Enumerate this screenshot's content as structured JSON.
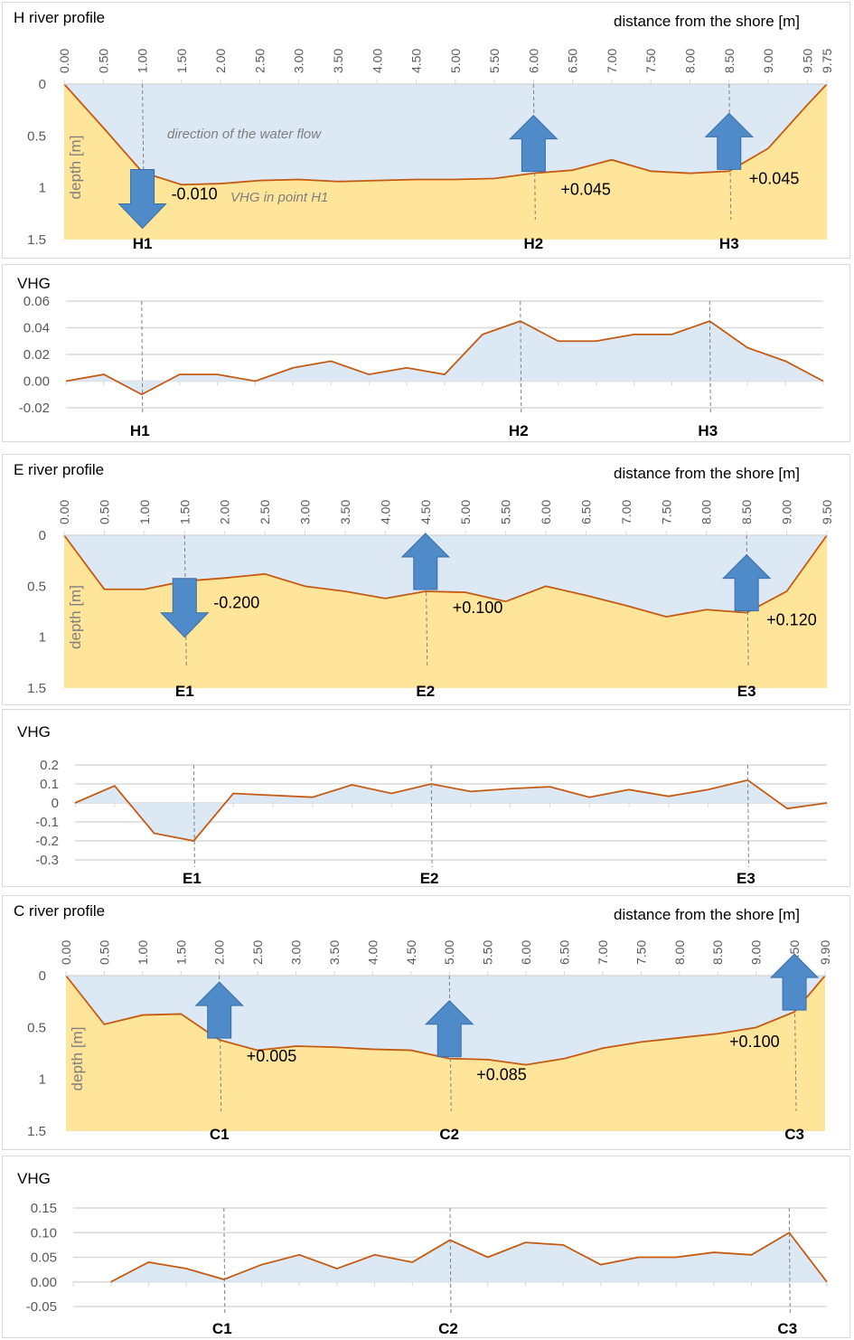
{
  "chart_data": [
    {
      "id": "h-profile",
      "type": "area",
      "title": "H river profile",
      "xlabel": "distance from the shore [m]",
      "ylabel": "depth [m]",
      "x_ticks": [
        "0.00",
        "0.50",
        "1.00",
        "1.50",
        "2.00",
        "2.50",
        "3.00",
        "3.50",
        "4.00",
        "4.50",
        "5.00",
        "5.50",
        "6.00",
        "6.50",
        "7.00",
        "7.50",
        "8.00",
        "8.50",
        "9.00",
        "9.50",
        "9.75"
      ],
      "y_ticks": [
        "0",
        "0.5",
        "1",
        "1.5"
      ],
      "ylim": [
        0,
        1.5
      ],
      "y_inverted": true,
      "x": [
        0,
        0.5,
        1.0,
        1.5,
        2.0,
        2.5,
        3.0,
        3.5,
        4.0,
        4.5,
        5.0,
        5.5,
        6.0,
        6.5,
        7.0,
        7.5,
        8.0,
        8.5,
        9.0,
        9.5,
        9.75
      ],
      "depth": [
        0,
        0.42,
        0.85,
        0.97,
        0.96,
        0.93,
        0.92,
        0.94,
        0.93,
        0.92,
        0.92,
        0.91,
        0.86,
        0.83,
        0.73,
        0.84,
        0.86,
        0.84,
        0.62,
        0.2,
        0
      ],
      "points": [
        {
          "label": "H1",
          "x": 1.0,
          "vhg": "-0.010",
          "direction": "down"
        },
        {
          "label": "H2",
          "x": 6.0,
          "vhg": "+0.045",
          "direction": "up"
        },
        {
          "label": "H3",
          "x": 8.5,
          "vhg": "+0.045",
          "direction": "up"
        }
      ],
      "annotations": [
        "direction of the water flow",
        "VHG  in point H1"
      ]
    },
    {
      "id": "h-vhg",
      "type": "area",
      "title": "VHG",
      "y_ticks": [
        "0.06",
        "0.04",
        "0.02",
        "0.00",
        "-0.02"
      ],
      "ylim": [
        -0.02,
        0.06
      ],
      "x": [
        0,
        0.5,
        1.0,
        1.5,
        2.0,
        2.5,
        3.0,
        3.5,
        4.0,
        4.5,
        5.0,
        5.5,
        6.0,
        6.5,
        7.0,
        7.5,
        8.0,
        8.5,
        9.0,
        9.5,
        10.0
      ],
      "values": [
        0,
        0.005,
        -0.01,
        0.005,
        0.005,
        0,
        0.01,
        0.015,
        0.005,
        0.01,
        0.005,
        0.035,
        0.045,
        0.03,
        0.03,
        0.035,
        0.035,
        0.045,
        0.025,
        0.015,
        0
      ],
      "points": [
        {
          "label": "H1",
          "x": 1.0
        },
        {
          "label": "H2",
          "x": 6.0
        },
        {
          "label": "H3",
          "x": 8.5
        }
      ]
    },
    {
      "id": "e-profile",
      "type": "area",
      "title": "E river profile",
      "xlabel": "distance from the shore [m]",
      "ylabel": "depth [m]",
      "x_ticks": [
        "0.00",
        "0.50",
        "1.00",
        "1.50",
        "2.00",
        "2.50",
        "3.00",
        "3.50",
        "4.00",
        "4.50",
        "5.00",
        "5.50",
        "6.00",
        "6.50",
        "7.00",
        "7.50",
        "8.00",
        "8.50",
        "9.00",
        "9.50"
      ],
      "y_ticks": [
        "0",
        "0.5",
        "1",
        "1.5"
      ],
      "ylim": [
        0,
        1.5
      ],
      "y_inverted": true,
      "x": [
        0,
        0.5,
        1.0,
        1.5,
        2.0,
        2.5,
        3.0,
        3.5,
        4.0,
        4.5,
        5.0,
        5.5,
        6.0,
        6.5,
        7.0,
        7.5,
        8.0,
        8.5,
        9.0,
        9.5
      ],
      "depth": [
        0,
        0.53,
        0.53,
        0.45,
        0.42,
        0.38,
        0.5,
        0.55,
        0.62,
        0.55,
        0.56,
        0.65,
        0.5,
        0.59,
        0.69,
        0.8,
        0.73,
        0.76,
        0.55,
        0
      ],
      "points": [
        {
          "label": "E1",
          "x": 1.5,
          "vhg": "-0.200",
          "direction": "down"
        },
        {
          "label": "E2",
          "x": 4.5,
          "vhg": "+0.100",
          "direction": "up"
        },
        {
          "label": "E3",
          "x": 8.5,
          "vhg": "+0.120",
          "direction": "up"
        }
      ]
    },
    {
      "id": "e-vhg",
      "type": "area",
      "title": "VHG",
      "y_ticks": [
        "0.2",
        "0.1",
        "0",
        "-0.1",
        "-0.2",
        "-0.3"
      ],
      "ylim": [
        -0.3,
        0.2
      ],
      "x": [
        0,
        0.5,
        1.0,
        1.5,
        2.0,
        2.5,
        3.0,
        3.5,
        4.0,
        4.5,
        5.0,
        5.5,
        6.0,
        6.5,
        7.0,
        7.5,
        8.0,
        8.5,
        9.0,
        9.5
      ],
      "values": [
        0,
        0.09,
        -0.16,
        -0.2,
        0.05,
        0.04,
        0.03,
        0.095,
        0.05,
        0.1,
        0.06,
        0.075,
        0.085,
        0.03,
        0.07,
        0.035,
        0.07,
        0.12,
        -0.03,
        0
      ],
      "points": [
        {
          "label": "E1",
          "x": 1.5
        },
        {
          "label": "E2",
          "x": 4.5
        },
        {
          "label": "E3",
          "x": 8.5
        }
      ]
    },
    {
      "id": "c-profile",
      "type": "area",
      "title": "C river profile",
      "xlabel": "distance from the shore [m]",
      "ylabel": "depth [m]",
      "x_ticks": [
        "0.00",
        "0.50",
        "1.00",
        "1.50",
        "2.00",
        "2.50",
        "3.00",
        "3.50",
        "4.00",
        "4.50",
        "5.00",
        "5.50",
        "6.00",
        "6.50",
        "7.00",
        "7.50",
        "8.00",
        "8.50",
        "9.00",
        "9.50",
        "9.90"
      ],
      "y_ticks": [
        "0",
        "0.5",
        "1",
        "1.5"
      ],
      "ylim": [
        0,
        1.5
      ],
      "y_inverted": true,
      "x": [
        0,
        0.5,
        1.0,
        1.5,
        2.0,
        2.5,
        3.0,
        3.5,
        4.0,
        4.5,
        5.0,
        5.5,
        6.0,
        6.5,
        7.0,
        7.5,
        8.0,
        8.5,
        9.0,
        9.5,
        9.9
      ],
      "depth": [
        0,
        0.47,
        0.38,
        0.37,
        0.62,
        0.72,
        0.68,
        0.69,
        0.71,
        0.72,
        0.8,
        0.81,
        0.86,
        0.8,
        0.7,
        0.64,
        0.6,
        0.56,
        0.5,
        0.35,
        0
      ],
      "points": [
        {
          "label": "C1",
          "x": 2.0,
          "vhg": "+0.005",
          "direction": "up"
        },
        {
          "label": "C2",
          "x": 5.0,
          "vhg": "+0.085",
          "direction": "up"
        },
        {
          "label": "C3",
          "x": 9.5,
          "vhg": "+0.100",
          "direction": "up"
        }
      ]
    },
    {
      "id": "c-vhg",
      "type": "area",
      "title": "VHG",
      "y_ticks": [
        "0.15",
        "0.10",
        "0.05",
        "0.00",
        "-0.05"
      ],
      "ylim": [
        -0.05,
        0.15
      ],
      "x": [
        0,
        0.5,
        1.0,
        1.5,
        2.0,
        2.5,
        3.0,
        3.5,
        4.0,
        4.5,
        5.0,
        5.5,
        6.0,
        6.5,
        7.0,
        7.5,
        8.0,
        8.5,
        9.0,
        9.5,
        10.0
      ],
      "values": [
        null,
        0,
        0.04,
        0.027,
        0.005,
        0.035,
        0.055,
        0.027,
        0.055,
        0.04,
        0.085,
        0.05,
        0.08,
        0.075,
        0.035,
        0.05,
        0.05,
        0.06,
        0.055,
        0.1,
        0
      ],
      "points": [
        {
          "label": "C1",
          "x": 2.0
        },
        {
          "label": "C2",
          "x": 5.0
        },
        {
          "label": "C3",
          "x": 9.5
        }
      ]
    }
  ],
  "colors": {
    "water": "#dde8f5",
    "sediment": "#ffe599",
    "line": "#c55a11",
    "arrow": "#4f8bc9",
    "arrow_edge": "#3a6ea5",
    "grid": "#d9d9d9",
    "guide": "#7f7f7f"
  }
}
